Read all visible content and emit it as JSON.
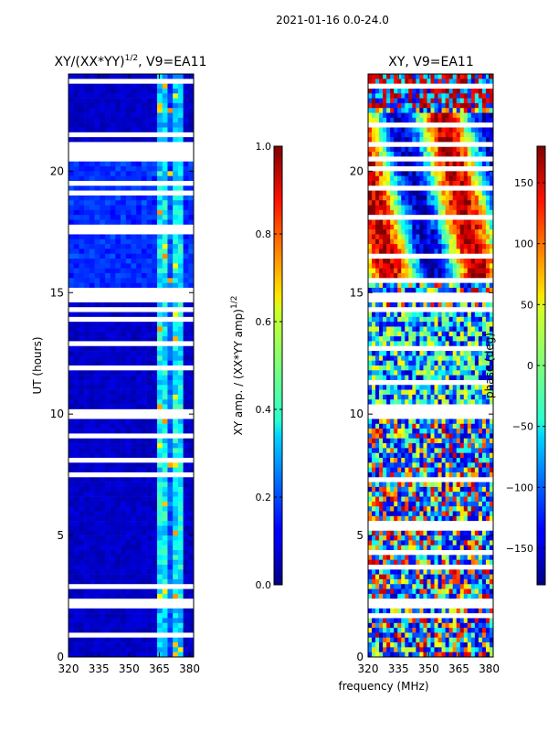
{
  "suptitle": "2021-01-16 0.0-24.0",
  "xlabel": "frequency (MHz)",
  "chart_data": [
    {
      "type": "heatmap",
      "title_main": "XY/(XX*YY)",
      "title_sup": "1/2",
      "title_rest": ", V9=EA11",
      "ylabel": "UT (hours)",
      "xlim": [
        320,
        382
      ],
      "ylim": [
        0,
        24
      ],
      "xticks": [
        320,
        335,
        350,
        365,
        380
      ],
      "yticks": [
        0,
        5,
        10,
        15,
        20
      ],
      "colorbar": {
        "label_main": "XY amp. / (XX*YY amp)",
        "label_sup": "1/2",
        "range": [
          0.0,
          1.0
        ],
        "ticks": [
          "0.0",
          "0.2",
          "0.4",
          "0.6",
          "0.8",
          "1.0"
        ],
        "tick_values": [
          0.0,
          0.2,
          0.4,
          0.6,
          0.8,
          1.0
        ],
        "colormap": "jet"
      }
    },
    {
      "type": "heatmap",
      "title": "XY, V9=EA11",
      "xlim": [
        320,
        382
      ],
      "ylim": [
        0,
        24
      ],
      "xticks": [
        320,
        335,
        350,
        365,
        380
      ],
      "yticks": [
        0,
        5,
        10,
        15,
        20
      ],
      "colorbar": {
        "label": "phase (deg)",
        "range": [
          -180,
          180
        ],
        "ticks": [
          "−150",
          "−100",
          "−50",
          "0",
          "50",
          "100",
          "150"
        ],
        "tick_values": [
          -150,
          -100,
          -50,
          0,
          50,
          100,
          150
        ],
        "colormap": "jet"
      }
    }
  ]
}
